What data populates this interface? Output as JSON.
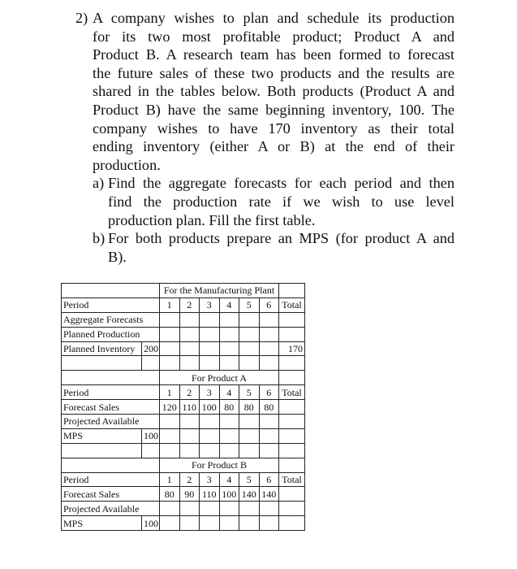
{
  "question": {
    "number": "2)",
    "intro_lines": [
      "A company wishes to plan and schedule its production",
      "for its two most profitable product; Product A and",
      "Product B. A research team has been formed to forecast",
      "the future sales of these two products and the results are",
      "shared in the tables below. Both products (Product A and",
      "Product B) have the same beginning inventory, 100. The",
      "company wishes to have 170 inventory as their total",
      "ending inventory (either A or B) at the end of their",
      "production."
    ],
    "part_a": {
      "label": "a)",
      "lines": [
        "Find the aggregate forecasts for each period and then",
        "find the production rate if we wish to use level",
        "production plan. Fill the first table."
      ]
    },
    "part_b": {
      "label": "b)",
      "lines": [
        "For both products prepare an MPS (for product A and",
        "B)."
      ]
    }
  },
  "table": {
    "plant": {
      "title": "For the Manufacturing Plant",
      "period_label": "Period",
      "periods": [
        "1",
        "2",
        "3",
        "4",
        "5",
        "6"
      ],
      "total_label": "Total",
      "rows": {
        "aggregate": "Aggregate Forecasts",
        "planned_production": "Planned Production",
        "planned_inventory": "Planned Inventory",
        "planned_inventory_start": "200",
        "planned_inventory_total": "170"
      }
    },
    "product_a": {
      "title": "For Product A",
      "period_label": "Period",
      "periods": [
        "1",
        "2",
        "3",
        "4",
        "5",
        "6"
      ],
      "total_label": "Total",
      "forecast_label": "Forecast Sales",
      "forecast": [
        "120",
        "110",
        "100",
        "80",
        "80",
        "80"
      ],
      "projected_label": "Projected Available",
      "mps_label": "MPS",
      "mps_start": "100"
    },
    "product_b": {
      "title": "For Product B",
      "period_label": "Period",
      "periods": [
        "1",
        "2",
        "3",
        "4",
        "5",
        "6"
      ],
      "total_label": "Total",
      "forecast_label": "Forecast Sales",
      "forecast": [
        "80",
        "90",
        "110",
        "100",
        "140",
        "140"
      ],
      "projected_label": "Projected Available",
      "mps_label": "MPS",
      "mps_start": "100"
    }
  }
}
